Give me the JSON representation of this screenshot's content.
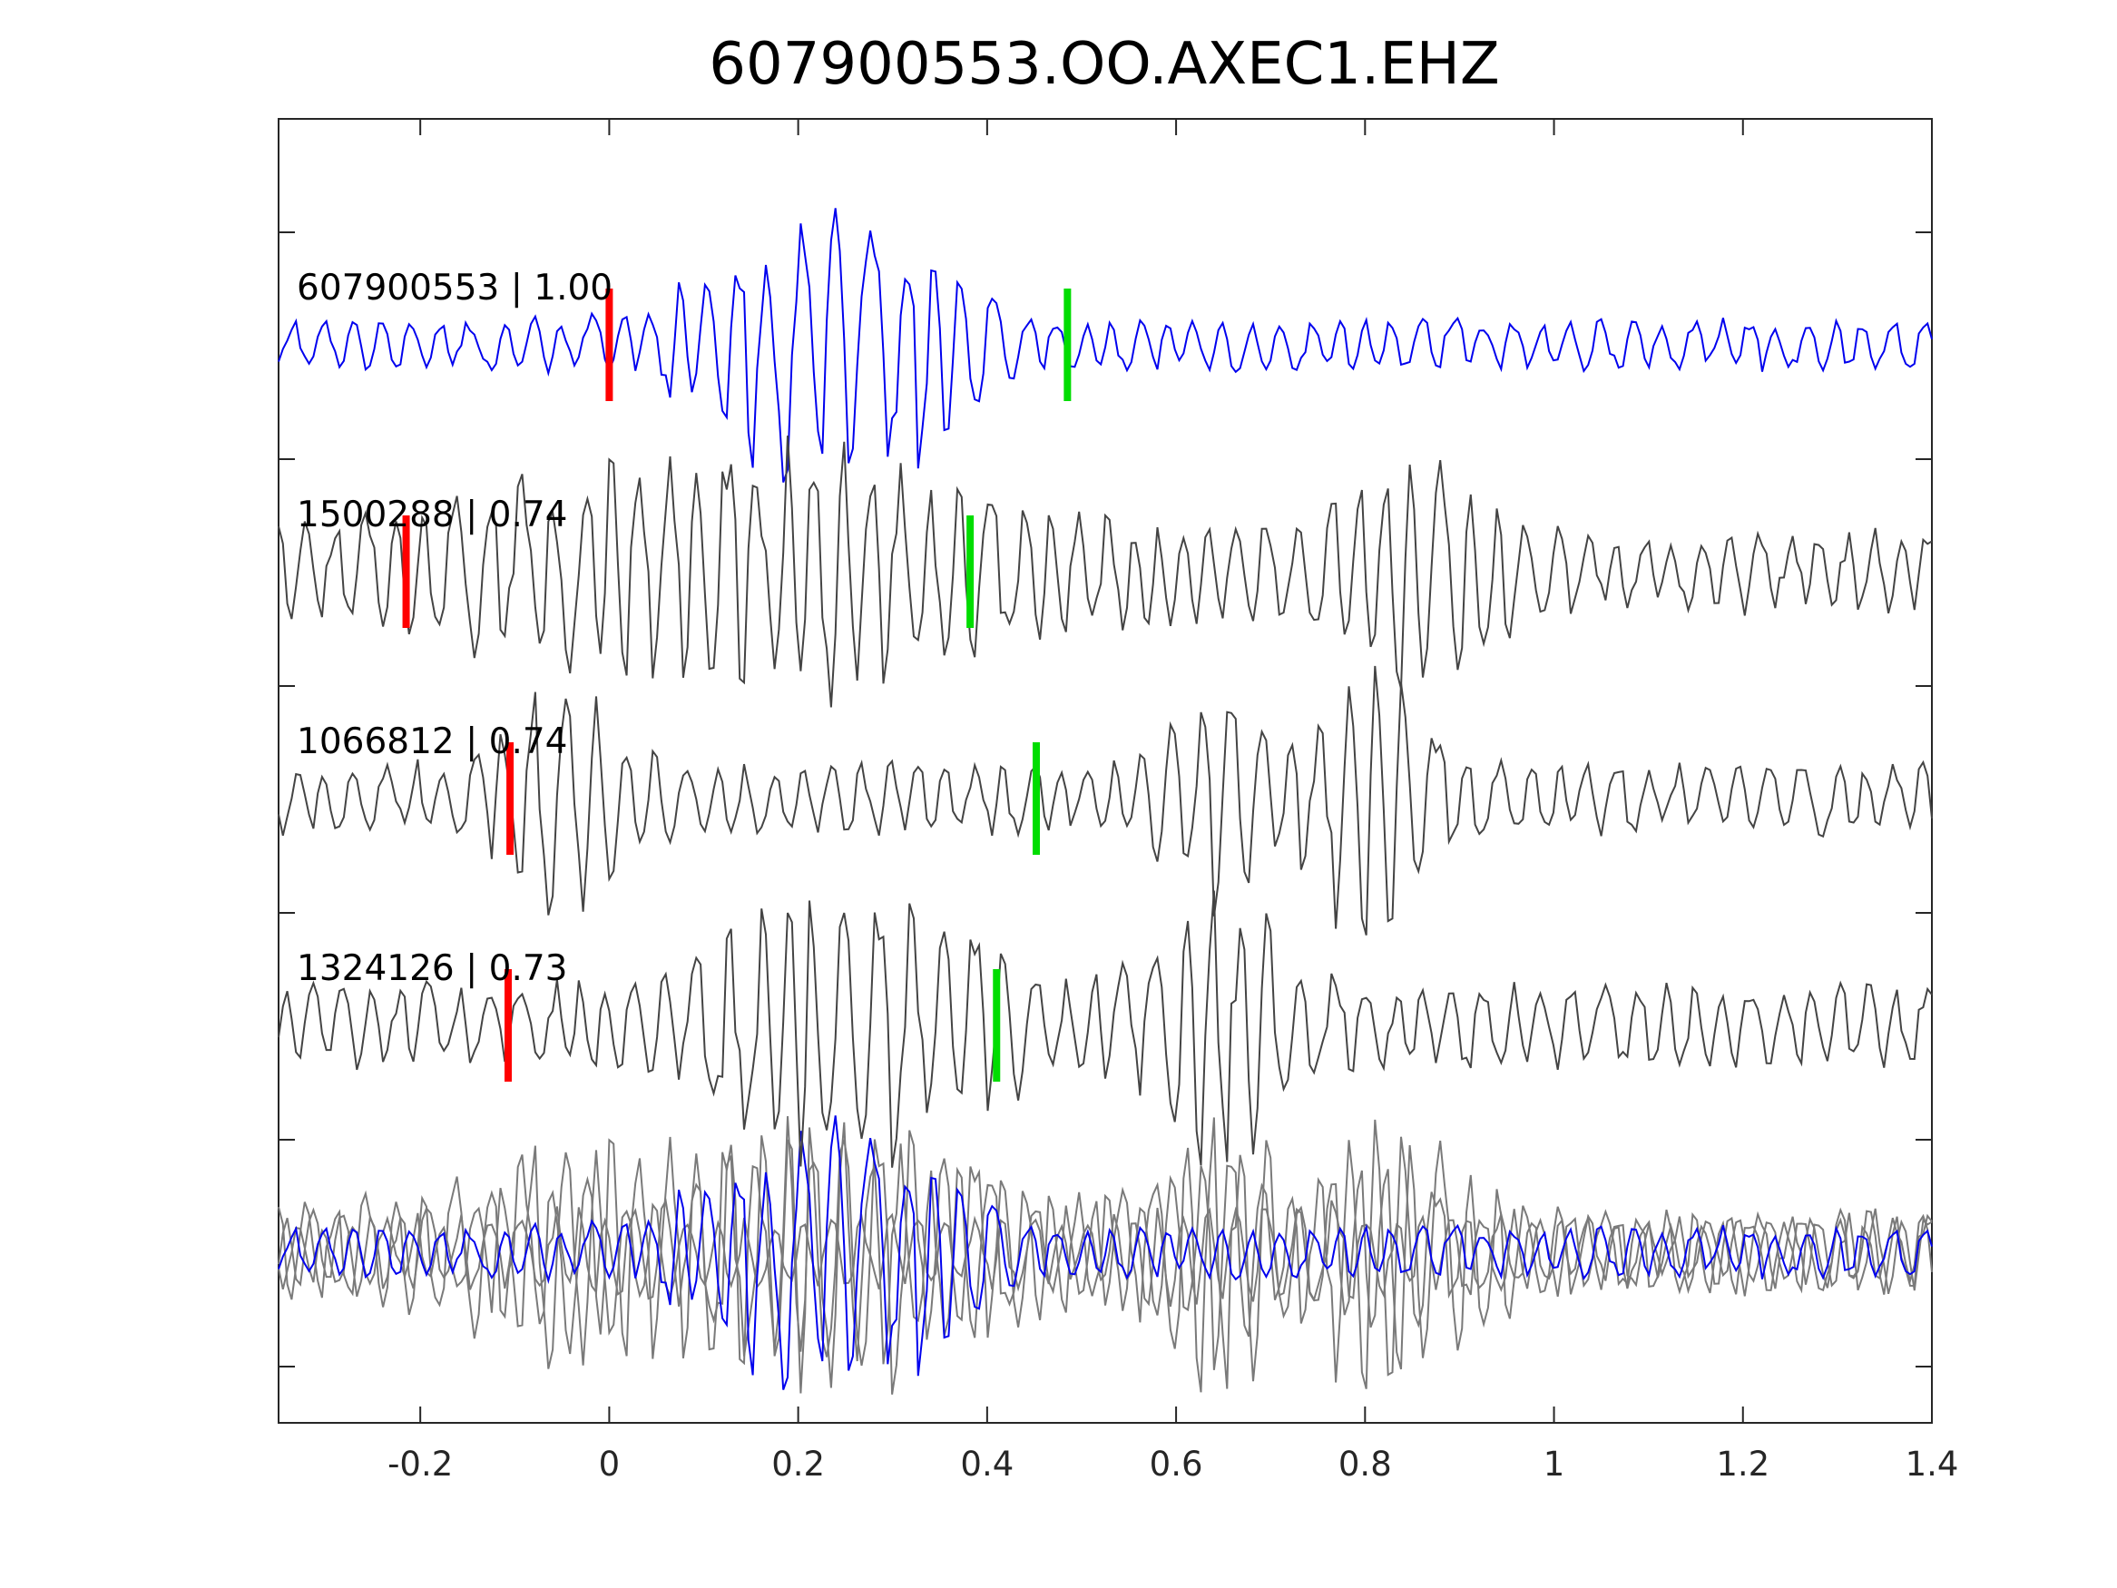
{
  "chart_data": {
    "type": "line",
    "title": "607900553.OO.AXEC1.EHZ",
    "xlabel": "",
    "ylabel": "",
    "xlim": [
      -0.35,
      1.4
    ],
    "x_ticks": [
      -0.2,
      0,
      0.2,
      0.4,
      0.6,
      0.8,
      1,
      1.2,
      1.4
    ],
    "x_tick_labels": [
      "-0.2",
      "0",
      "0.2",
      "0.4",
      "0.6",
      "0.8",
      "1",
      "1.2",
      "1.4"
    ],
    "grid": false,
    "legend": "none",
    "colors": {
      "master": "#0000ee",
      "neighbor": "#444444",
      "stack_neighbor": "#7a7a7a",
      "p_pick": "#ff0000",
      "s_pick": "#00dd00",
      "axes": "#262626"
    },
    "series": [
      {
        "label": "607900553 | 1.00",
        "role": "master",
        "p_pick_time": 0.0,
        "s_pick_time": 0.485,
        "burst": [
          {
            "center": 0.21,
            "width": 0.09,
            "amp": 0.95
          },
          {
            "center": 0.34,
            "width": 0.04,
            "amp": 0.55
          }
        ],
        "noise_amp": 0.22
      },
      {
        "label": "1500288 | 0.74",
        "role": "neighbor",
        "p_pick_time": -0.215,
        "s_pick_time": 0.382,
        "burst": [
          {
            "center": 0.15,
            "width": 0.22,
            "amp": 0.8
          },
          {
            "center": 0.86,
            "width": 0.06,
            "amp": 0.85
          }
        ],
        "noise_amp": 0.35
      },
      {
        "label": "1066812 | 0.74",
        "role": "neighbor",
        "p_pick_time": -0.105,
        "s_pick_time": 0.452,
        "burst": [
          {
            "center": -0.05,
            "width": 0.05,
            "amp": 0.7
          },
          {
            "center": 0.8,
            "width": 0.05,
            "amp": 1.0
          },
          {
            "center": 0.64,
            "width": 0.04,
            "amp": 0.7
          }
        ],
        "noise_amp": 0.3
      },
      {
        "label": "1324126 | 0.73",
        "role": "neighbor",
        "p_pick_time": -0.107,
        "s_pick_time": 0.41,
        "burst": [
          {
            "center": 0.25,
            "width": 0.12,
            "amp": 0.9
          },
          {
            "center": 0.65,
            "width": 0.05,
            "amp": 0.95
          }
        ],
        "noise_amp": 0.35
      }
    ],
    "stack": {
      "description_shown": "overlay of all traces",
      "includes": [
        0,
        1,
        2,
        3
      ]
    }
  }
}
